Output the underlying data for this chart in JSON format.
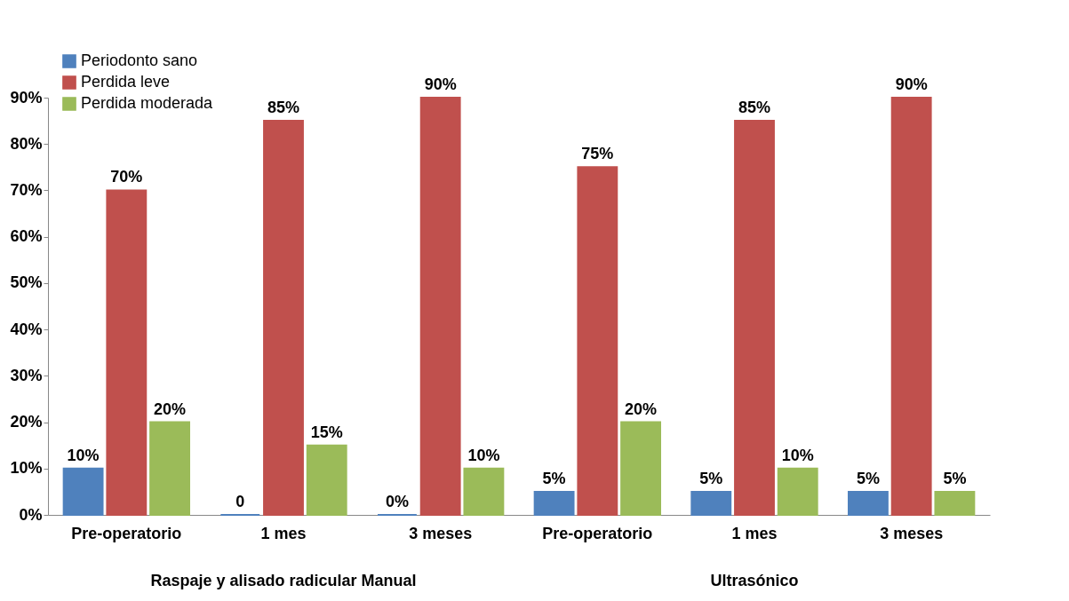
{
  "chart_data": {
    "type": "bar",
    "categories": [
      "Pre-operatorio",
      "1 mes",
      "3 meses",
      "Pre-operatorio",
      "1 mes",
      "3 meses"
    ],
    "series": [
      {
        "name": "Periodonto sano",
        "color": "#4f81bd",
        "values": [
          10,
          0,
          0,
          5,
          5,
          5
        ],
        "value_labels": [
          "10%",
          "0",
          "0%",
          "5%",
          "5%",
          "5%"
        ]
      },
      {
        "name": "Perdida leve",
        "color": "#c0504d",
        "values": [
          70,
          85,
          90,
          75,
          85,
          90
        ],
        "value_labels": [
          "70%",
          "85%",
          "90%",
          "75%",
          "85%",
          "90%"
        ]
      },
      {
        "name": "Perdida moderada",
        "color": "#9bbb59",
        "values": [
          20,
          15,
          10,
          20,
          10,
          5
        ],
        "value_labels": [
          "20%",
          "15%",
          "10%",
          "20%",
          "10%",
          "5%"
        ]
      }
    ],
    "ylim": [
      0,
      90
    ],
    "yticks": [
      {
        "value": 0,
        "label": "0%"
      },
      {
        "value": 10,
        "label": "10%"
      },
      {
        "value": 20,
        "label": "20%"
      },
      {
        "value": 30,
        "label": "30%"
      },
      {
        "value": 40,
        "label": "40%"
      },
      {
        "value": 50,
        "label": "50%"
      },
      {
        "value": 60,
        "label": "60%"
      },
      {
        "value": 70,
        "label": "70%"
      },
      {
        "value": 80,
        "label": "80%"
      },
      {
        "value": 90,
        "label": "90%"
      }
    ],
    "annotations": [
      "Raspaje y alisado radicular Manual",
      "Ultrasónico"
    ],
    "grid": false,
    "legend": "top left"
  }
}
